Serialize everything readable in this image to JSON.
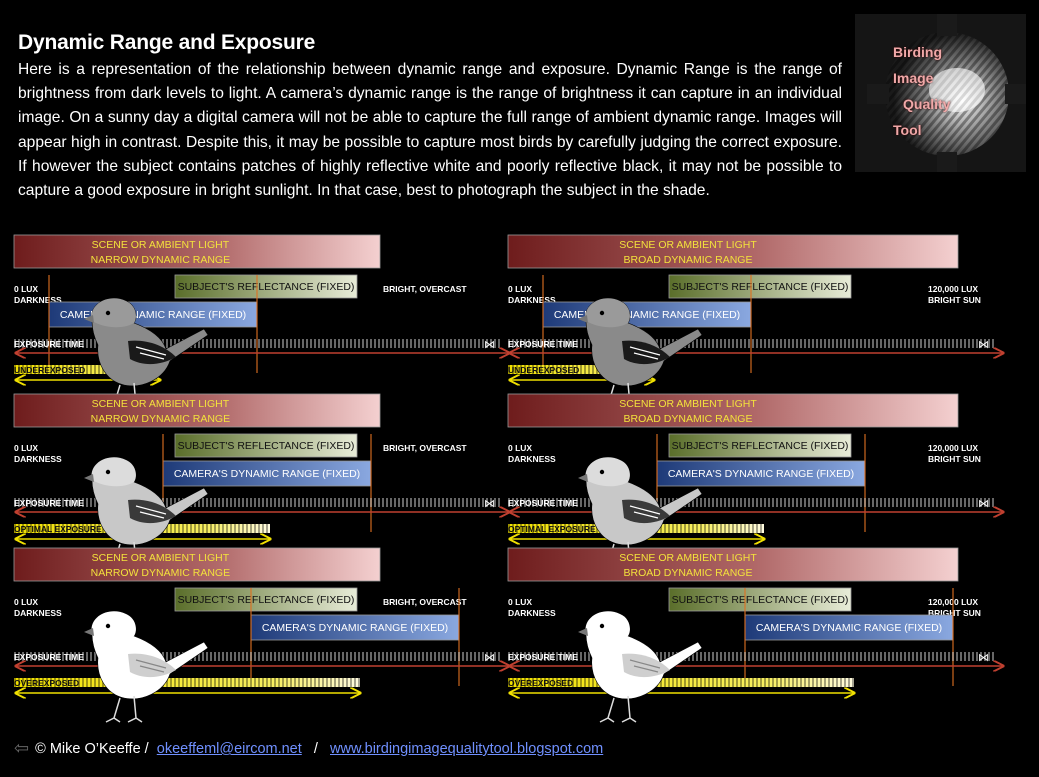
{
  "title": "Dynamic Range and Exposure",
  "intro": "Here is a representation of the relationship between dynamic range and exposure.  Dynamic Range is the range of brightness from dark levels to light.  A camera’s dynamic range is the range of brightness it can capture in an individual image.  On a sunny day a digital camera will not be able to capture the full range of ambient dynamic range.  Images will appear high in contrast.  Despite this, it may be possible to capture most birds by carefully judging the correct exposure.  If however the subject contains patches of highly reflective white and poorly reflective black, it may not be possible to capture a good exposure in bright sunlight.  In that case, best to photograph the subject in the shade.",
  "logo": {
    "words": [
      "Birding",
      "Image",
      "Quality",
      "Tool"
    ]
  },
  "labels": {
    "scene": "SCENE OR AMBIENT LIGHT",
    "narrow": "NARROW DYNAMIC RANGE",
    "broad": "BROAD DYNAMIC RANGE",
    "lux0": "0 LUX",
    "darkness": "DARKNESS",
    "bright_overcast": "BRIGHT, OVERCAST",
    "lux_max": "120,000 LUX",
    "bright_sun": "BRIGHT SUN",
    "subject": "SUBJECT'S REFLECTANCE (FIXED)",
    "camera": "CAMERA'S DYNAMIC RANGE (FIXED)",
    "exposure_time": "EXPOSURE TIME"
  },
  "exposure_states": [
    "UNDEREXPOSED",
    "OPTIMAL EXPOSURE",
    "OVEREXPOSED"
  ],
  "colors": {
    "scene_dark": "#6e1c1c",
    "scene_light": "#f2c8c8",
    "subject_bar": "#90a050",
    "camera_bar": "#3a60a8",
    "exposure_bar": "#f0e000",
    "arrow_red": "#c04030",
    "arrow_yellow": "#f0e000"
  },
  "footer": {
    "copyright": "© Mike O’Keeffe",
    "separator": "/",
    "email": "okeeffeml@eircom.net",
    "site": "www.birdingimagequalitytool.blogspot.com"
  }
}
